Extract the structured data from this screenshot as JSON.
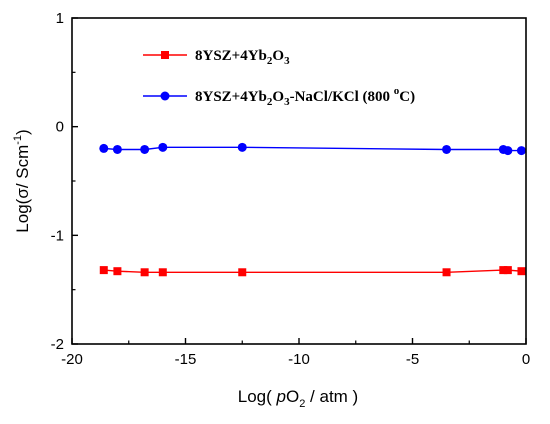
{
  "chart_data": {
    "type": "line",
    "xlim": [
      -20,
      0
    ],
    "ylim": [
      -2,
      1
    ],
    "xticks": [
      -20,
      -15,
      -10,
      -5,
      0
    ],
    "yticks": [
      -2,
      -1,
      0,
      1
    ],
    "xlabel": {
      "prefix": "Log( ",
      "italic": "p",
      "main": "O",
      "sub": "2",
      "suffix": " / atm )"
    },
    "ylabel": {
      "main": "Log(σ/ Scm",
      "sup": "-1",
      "end": ")"
    },
    "grid": false,
    "legend_position": "top-left",
    "series": [
      {
        "name_parts": {
          "a": "8YSZ+4Yb",
          "sub1": "2",
          "b": "O",
          "sub2": "3",
          "c": "",
          "sup": "",
          "d": ""
        },
        "color": "#ff0000",
        "marker": "square",
        "x": [
          -18.6,
          -18.0,
          -16.8,
          -16.0,
          -12.5,
          -3.5,
          -1.0,
          -0.8,
          -0.2
        ],
        "y": [
          -1.32,
          -1.33,
          -1.34,
          -1.34,
          -1.34,
          -1.34,
          -1.32,
          -1.32,
          -1.33
        ]
      },
      {
        "name_parts": {
          "a": "8YSZ+4Yb",
          "sub1": "2",
          "b": "O",
          "sub2": "3",
          "c": "-NaCl/KCl (800 ",
          "sup": "o",
          "d": "C)"
        },
        "color": "#0000ff",
        "marker": "circle",
        "x": [
          -18.6,
          -18.0,
          -16.8,
          -16.0,
          -12.5,
          -3.5,
          -1.0,
          -0.8,
          -0.2
        ],
        "y": [
          -0.2,
          -0.21,
          -0.21,
          -0.19,
          -0.19,
          -0.21,
          -0.21,
          -0.22,
          -0.22
        ]
      }
    ]
  }
}
